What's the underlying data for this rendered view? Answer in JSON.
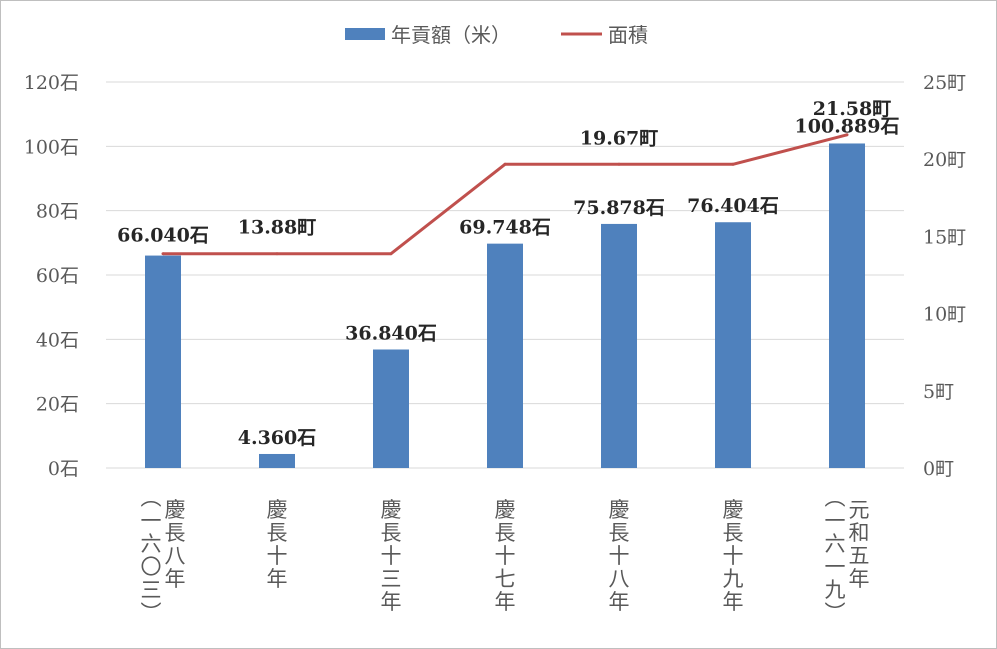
{
  "legend": {
    "bar_label": "年貢額（米）",
    "line_label": "面積",
    "position": "top"
  },
  "colors": {
    "bar": "#4f81bd",
    "line": "#c0504d",
    "grid": "#d9d9d9",
    "axis": "#d9d9d9"
  },
  "chart_data": {
    "type": "bar",
    "combo": "bar-line-dual-axis",
    "categories": [
      "慶長八年（一六〇三）",
      "慶長十年",
      "慶長十三年",
      "慶長十七年",
      "慶長十八年",
      "慶長十九年",
      "元和五年（一六一九）"
    ],
    "category_columns": [
      [
        "慶長八年",
        "（一六〇三）"
      ],
      [
        "慶長十年"
      ],
      [
        "慶長十三年"
      ],
      [
        "慶長十七年"
      ],
      [
        "慶長十八年"
      ],
      [
        "慶長十九年"
      ],
      [
        "元和五年",
        "（一六一九）"
      ]
    ],
    "series": [
      {
        "name": "年貢額（米）",
        "type": "bar",
        "axis": "left",
        "values": [
          66.04,
          4.36,
          36.84,
          69.748,
          75.878,
          76.404,
          100.889
        ],
        "labels": [
          "66.040石",
          "4.360石",
          "36.840石",
          "69.748石",
          "75.878石",
          "76.404石",
          "100.889石"
        ]
      },
      {
        "name": "面積",
        "type": "line",
        "axis": "right",
        "values": [
          13.88,
          13.88,
          13.88,
          19.67,
          19.67,
          19.67,
          21.58
        ],
        "labels": [
          "",
          "13.88町",
          "",
          "",
          "19.67町",
          "",
          "21.58町"
        ]
      }
    ],
    "y_left": {
      "range": [
        0,
        120
      ],
      "ticks": [
        0,
        20,
        40,
        60,
        80,
        100,
        120
      ],
      "tick_labels": [
        "0石",
        "20石",
        "40石",
        "60石",
        "80石",
        "100石",
        "120石"
      ]
    },
    "y_right": {
      "range": [
        0,
        25
      ],
      "ticks": [
        0,
        5,
        10,
        15,
        20,
        25
      ],
      "tick_labels": [
        "0町",
        "5町",
        "10町",
        "15町",
        "20町",
        "25町"
      ]
    },
    "grid": true
  }
}
